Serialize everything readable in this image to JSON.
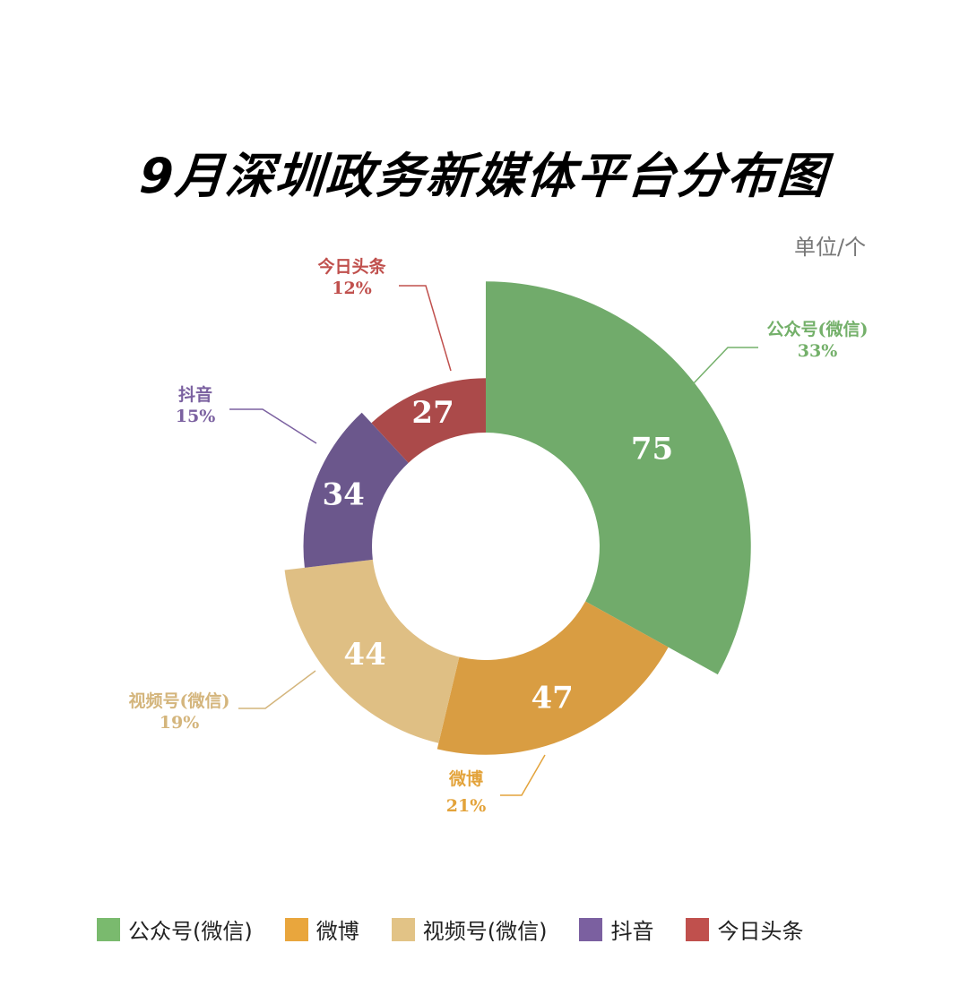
{
  "chart_data": {
    "type": "pie",
    "variant": "rose-donut",
    "title": "9月深圳政务新媒体平台分布图",
    "unit": "单位/个",
    "categories": [
      "公众号(微信)",
      "微博",
      "视频号(微信)",
      "抖音",
      "今日头条"
    ],
    "values": [
      75,
      47,
      44,
      34,
      27
    ],
    "percent_labels": [
      "33%",
      "21%",
      "19%",
      "15%",
      "12%"
    ],
    "slice_colors": [
      "#71ab6b",
      "#d99d42",
      "#dfbf84",
      "#6b578c",
      "#ab4a4a"
    ],
    "label_colors": [
      "#74b06a",
      "#e3a33b",
      "#d4b57c",
      "#7b61a0",
      "#c0504d"
    ],
    "legend_colors": [
      "#7aba6e",
      "#e9a63d",
      "#e2c386",
      "#7b60a0",
      "#c0504d"
    ],
    "legend": "bottom"
  }
}
